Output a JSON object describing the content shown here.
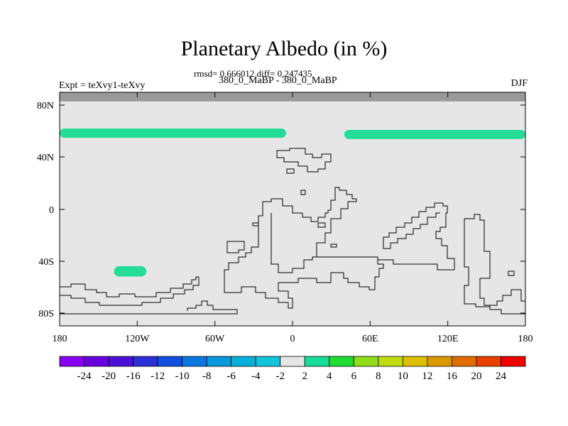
{
  "chart_data": {
    "type": "heatmap",
    "title": "Planetary Albedo (in %)",
    "stats_text": "rmsd= 0.666012 diff= 0.247435",
    "subtitle": "380_0_MaBP - 380_0_MaBP",
    "left_label": "Expt = teXvy1-teXvy",
    "right_label": "DJF",
    "x_ticks": [
      "180",
      "120W",
      "60W",
      "0",
      "60E",
      "120E",
      "180"
    ],
    "y_ticks": [
      "80N",
      "40N",
      "0",
      "40S",
      "80S"
    ],
    "xlim": [
      -180,
      180
    ],
    "ylim": [
      -90,
      90
    ],
    "colorbar": {
      "labels": [
        "-24",
        "-20",
        "-16",
        "-12",
        "-10",
        "-8",
        "-6",
        "-4",
        "-2",
        "2",
        "4",
        "6",
        "8",
        "10",
        "12",
        "16",
        "20",
        "24"
      ],
      "colors": [
        "#8a00f0",
        "#6a00dc",
        "#4a10d6",
        "#2c2ed8",
        "#1050e0",
        "#0a78e0",
        "#0898dc",
        "#08b0dc",
        "#10c4dc",
        "#e6e6e6",
        "#18dc9a",
        "#20dc30",
        "#90dc18",
        "#c0dc10",
        "#dcc000",
        "#dc9800",
        "#e06c00",
        "#e84000",
        "#f00000"
      ]
    },
    "series": [
      {
        "value_range": "2 to 4",
        "color": "#22dc98",
        "regions": [
          {
            "lon": [
              -180,
              -5
            ],
            "lat": [
              55,
              62
            ]
          },
          {
            "lon": [
              40,
              180
            ],
            "lat": [
              54,
              61
            ]
          },
          {
            "lon": [
              -138,
              -113
            ],
            "lat": [
              -52,
              -44
            ]
          }
        ]
      }
    ],
    "masked_band": {
      "lat": [
        83,
        90
      ],
      "color": "#999999"
    },
    "background_color": "#e6e6e6"
  }
}
